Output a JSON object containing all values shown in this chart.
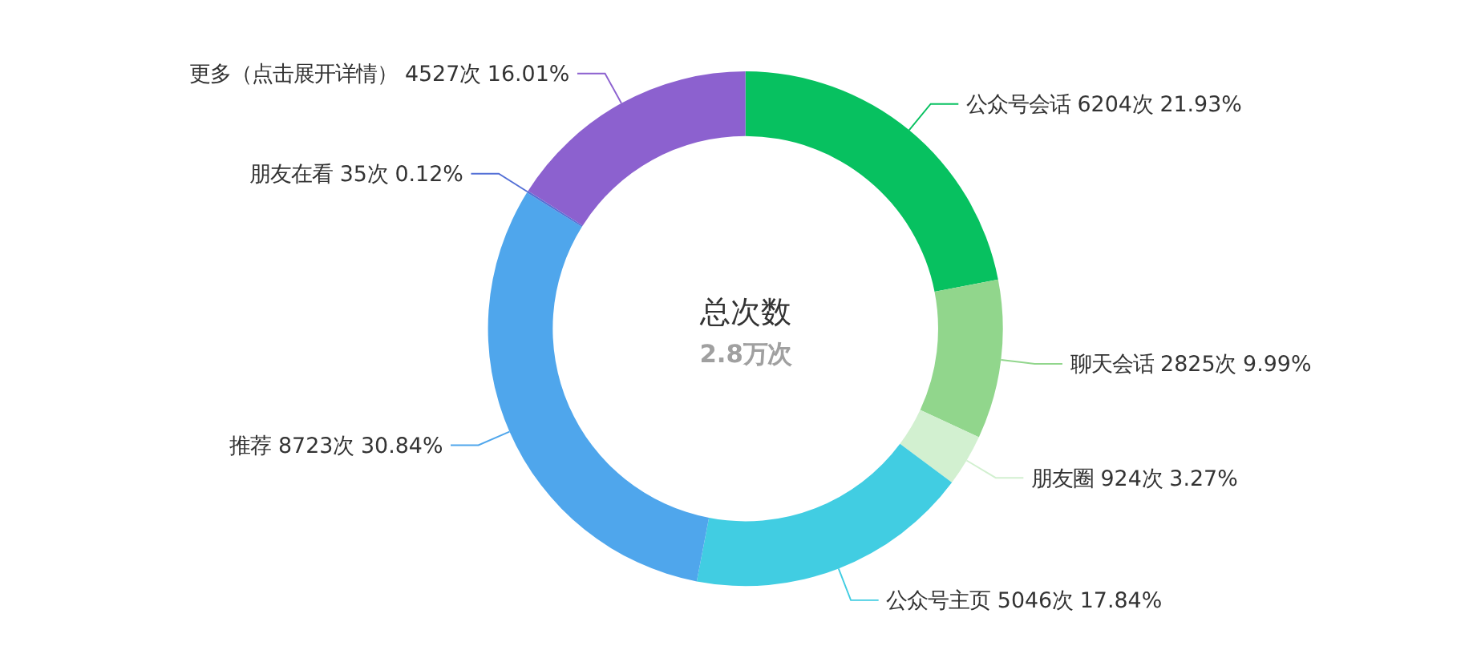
{
  "chart_data": {
    "type": "donut",
    "title": "总次数",
    "subtitle": "2.8万次",
    "categories": [
      "公众号会话",
      "聊天会话",
      "朋友圈",
      "公众号主页",
      "推荐",
      "朋友在看",
      "更多（点击展开详情）"
    ],
    "values": [
      6204,
      2825,
      924,
      5046,
      8723,
      35,
      4527
    ],
    "value_labels": [
      "6204次 21.93%",
      "2825次 9.99%",
      "924次 3.27%",
      "5046次 17.84%",
      "8723次 30.84%",
      "35次 0.12%",
      "4527次 16.01%"
    ],
    "colors": [
      "#07c160",
      "#91d68c",
      "#d2f0d0",
      "#41cde2",
      "#4fa6ec",
      "#5470d6",
      "#8c61cf"
    ]
  }
}
